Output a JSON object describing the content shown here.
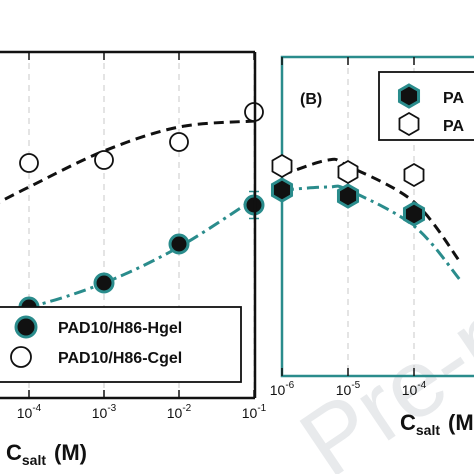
{
  "chart_data": [
    {
      "type": "scatter",
      "panel": "A",
      "x_scale": "log",
      "xlim": [
        2e-05,
        0.1
      ],
      "ylim": [
        0,
        1
      ],
      "grid": "vertical-dashed",
      "x_ticks": [
        {
          "base": "10",
          "exp": "-4",
          "value": 0.0001
        },
        {
          "base": "10",
          "exp": "-3",
          "value": 0.001
        },
        {
          "base": "10",
          "exp": "-2",
          "value": 0.01
        },
        {
          "base": "10",
          "exp": "-1",
          "value": 0.1
        }
      ],
      "xlabel": {
        "main": "C",
        "sub": "salt",
        "unit": "(M)"
      },
      "legend_position": "bottom-right",
      "series": [
        {
          "name": "PAD10/H86-Hgel",
          "marker": "circle-filled",
          "color": "#111111",
          "edge_color": "#2a8c8c",
          "points": [
            {
              "x": 0.0001,
              "y": 0.11,
              "err": 0.025
            },
            {
              "x": 0.001,
              "y": 0.19
            },
            {
              "x": 0.01,
              "y": 0.32
            },
            {
              "x": 0.1,
              "y": 0.45,
              "err": 0.045
            }
          ],
          "fit": {
            "style": "dash-dot",
            "color": "#2a8c8c",
            "x": [
              2e-05,
              0.0001,
              0.001,
              0.01,
              0.1
            ],
            "y": [
              0.09,
              0.11,
              0.19,
              0.31,
              0.47
            ]
          }
        },
        {
          "name": "PAD10/H86-Cgel",
          "marker": "circle-open",
          "color": "#111111",
          "points": [
            {
              "x": 0.0001,
              "y": 0.59
            },
            {
              "x": 0.001,
              "y": 0.6
            },
            {
              "x": 0.01,
              "y": 0.66
            },
            {
              "x": 0.1,
              "y": 0.76
            }
          ],
          "fit": {
            "style": "dashed",
            "color": "#111111",
            "x": [
              2e-05,
              0.0001,
              0.001,
              0.01,
              0.1
            ],
            "y": [
              0.42,
              0.51,
              0.63,
              0.71,
              0.73
            ]
          }
        }
      ]
    },
    {
      "type": "scatter",
      "panel": "B",
      "title": "(B)",
      "x_scale": "log",
      "xlim": [
        1e-06,
        0.001
      ],
      "ylim": [
        0,
        1
      ],
      "grid": "vertical-dashed",
      "x_ticks": [
        {
          "base": "10",
          "exp": "-6",
          "value": 1e-06
        },
        {
          "base": "10",
          "exp": "-5",
          "value": 1e-05
        },
        {
          "base": "10",
          "exp": "-4",
          "value": 0.0001
        }
      ],
      "xlabel": {
        "main": "C",
        "sub": "salt",
        "unit": "(M"
      },
      "legend_position": "top-right",
      "series": [
        {
          "name": "PA",
          "marker": "hexagon-filled",
          "color": "#111111",
          "edge_color": "#2a8c8c",
          "points": [
            {
              "x": 1e-06,
              "y": 0.5
            },
            {
              "x": 1e-05,
              "y": 0.48
            },
            {
              "x": 0.0001,
              "y": 0.42
            }
          ],
          "fit": {
            "style": "dash-dot",
            "color": "#2a8c8c",
            "x": [
              1e-06,
              5e-06,
              1e-05,
              0.0001,
              0.0005
            ],
            "y": [
              0.5,
              0.51,
              0.5,
              0.38,
              0.2
            ]
          }
        },
        {
          "name": "PA",
          "marker": "hexagon-open",
          "color": "#111111",
          "points": [
            {
              "x": 1e-06,
              "y": 0.58
            },
            {
              "x": 1e-05,
              "y": 0.56
            },
            {
              "x": 0.0001,
              "y": 0.55
            }
          ],
          "fit": {
            "style": "dashed",
            "color": "#111111",
            "x": [
              1e-06,
              5e-06,
              1e-05,
              0.0001,
              0.0005
            ],
            "y": [
              0.55,
              0.6,
              0.58,
              0.46,
              0.26
            ]
          }
        }
      ]
    }
  ],
  "watermark": "Pre-proof",
  "colors": {
    "axis": "#111111",
    "teal": "#2a8c8c",
    "grid": "#c8c8c8"
  }
}
